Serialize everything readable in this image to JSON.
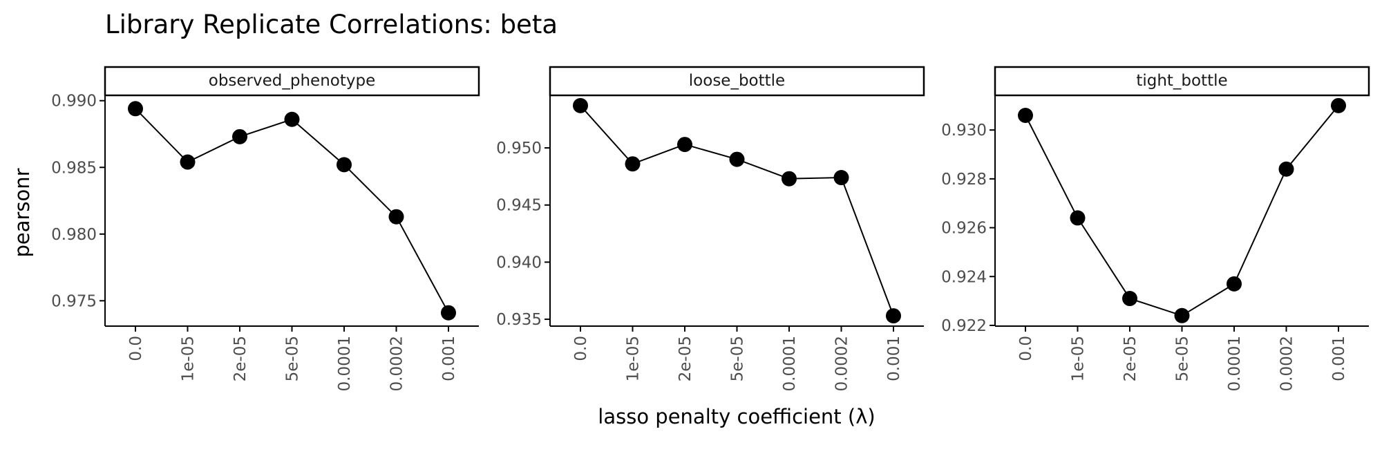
{
  "chart_data": {
    "type": "line",
    "title": "Library Replicate Correlations: beta",
    "xlabel": "lasso penalty coefficient (λ)",
    "ylabel": "pearsonr",
    "categories": [
      "0.0",
      "1e-05",
      "2e-05",
      "5e-05",
      "0.0001",
      "0.0002",
      "0.001"
    ],
    "grid": false,
    "panels": [
      {
        "name": "observed_phenotype",
        "values": [
          0.9894,
          0.9854,
          0.9873,
          0.9886,
          0.9852,
          0.9813,
          0.9741
        ],
        "yticks": [
          0.975,
          0.98,
          0.985,
          0.99
        ],
        "ytick_labels": [
          "0.975",
          "0.980",
          "0.985",
          "0.990"
        ],
        "ylim": [
          0.9731,
          0.9904
        ]
      },
      {
        "name": "loose_bottle",
        "values": [
          0.9537,
          0.9486,
          0.9503,
          0.949,
          0.9473,
          0.9474,
          0.9353
        ],
        "yticks": [
          0.935,
          0.94,
          0.945,
          0.95
        ],
        "ytick_labels": [
          "0.935",
          "0.940",
          "0.945",
          "0.950"
        ],
        "ylim": [
          0.9344,
          0.9546
        ]
      },
      {
        "name": "tight_bottle",
        "values": [
          0.9306,
          0.9264,
          0.9231,
          0.9224,
          0.9237,
          0.9284,
          0.931
        ],
        "yticks": [
          0.922,
          0.924,
          0.926,
          0.928,
          0.93
        ],
        "ytick_labels": [
          "0.922",
          "0.924",
          "0.926",
          "0.928",
          "0.930"
        ],
        "ylim": [
          0.92197,
          0.93142
        ]
      }
    ]
  }
}
